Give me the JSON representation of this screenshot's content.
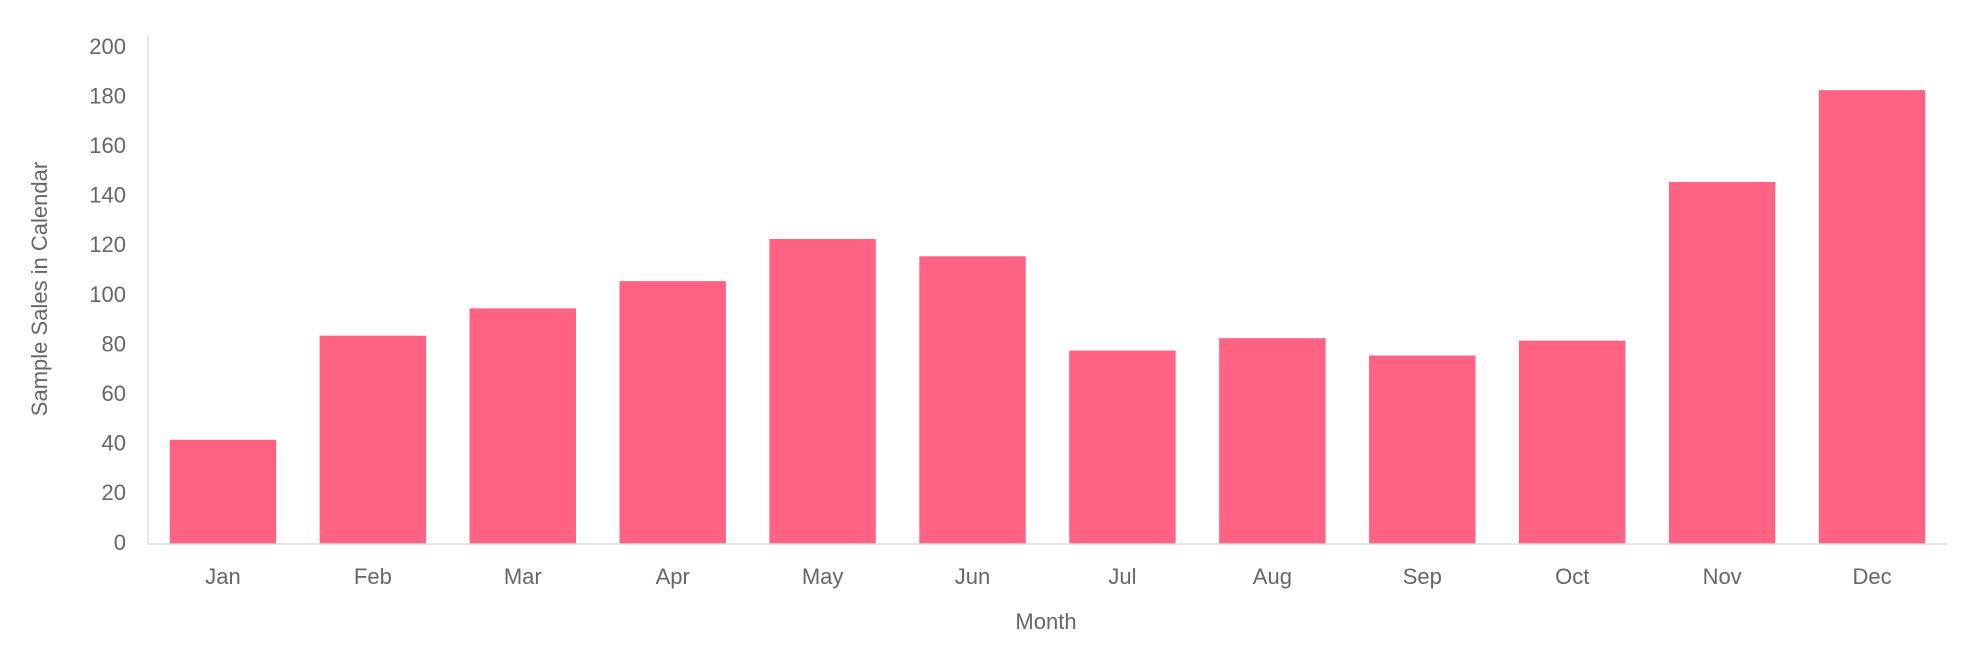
{
  "chart_data": {
    "type": "bar",
    "x_label": "Month",
    "y_label": "Sample Sales in Calendar",
    "categories": [
      "Jan",
      "Feb",
      "Mar",
      "Apr",
      "May",
      "Jun",
      "Jul",
      "Aug",
      "Sep",
      "Oct",
      "Nov",
      "Dec"
    ],
    "values": [
      42,
      84,
      95,
      106,
      123,
      116,
      78,
      83,
      76,
      82,
      146,
      183
    ],
    "color": "#ff6384",
    "ylim": [
      0,
      200
    ],
    "yticks": [
      0,
      20,
      40,
      60,
      80,
      100,
      120,
      140,
      160,
      180,
      200
    ],
    "grid": false
  }
}
